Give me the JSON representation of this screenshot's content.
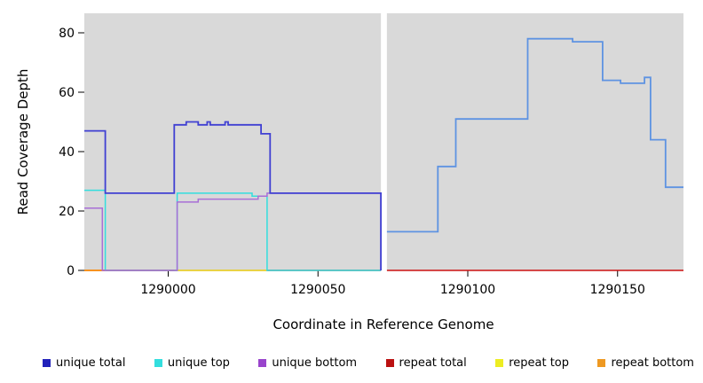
{
  "chart_data": {
    "type": "line",
    "title": "",
    "xlabel": "Coordinate in Reference Genome",
    "ylabel": "Read Coverage Depth",
    "xlim": [
      1289972,
      1290172
    ],
    "ylim": [
      0,
      80
    ],
    "x_ticks": [
      1290000,
      1290050,
      1290100,
      1290150
    ],
    "y_ticks": [
      0,
      20,
      40,
      60,
      80
    ],
    "grid": false,
    "panel_bg": "#d9d9d9",
    "gap_x": [
      1290071,
      1290073
    ],
    "legend_position": "bottom",
    "series": [
      {
        "name": "repeat total",
        "color": "#cc1111",
        "width": 1.5,
        "paths": [
          [
            [
              1289972,
              0
            ],
            [
              1290071,
              0
            ]
          ],
          [
            [
              1290073,
              0
            ],
            [
              1290172,
              0
            ]
          ]
        ]
      },
      {
        "name": "repeat bottom",
        "color": "#ff9900",
        "width": 1.6,
        "paths": [
          [
            [
              1289972,
              0
            ],
            [
              1290002,
              0
            ]
          ]
        ]
      },
      {
        "name": "repeat top",
        "color": "#eded33",
        "width": 1.5,
        "paths": [
          [
            [
              1290002,
              0
            ],
            [
              1290033,
              0
            ]
          ]
        ]
      },
      {
        "name": "unique top",
        "color": "#33dede",
        "width": 1.5,
        "paths": [
          [
            [
              1289972,
              27
            ],
            [
              1289979,
              27
            ],
            [
              1289979,
              0
            ],
            [
              1290003,
              0
            ],
            [
              1290003,
              26
            ],
            [
              1290028,
              26
            ],
            [
              1290028,
              25
            ],
            [
              1290033,
              25
            ],
            [
              1290033,
              0
            ],
            [
              1290071,
              0
            ]
          ]
        ]
      },
      {
        "name": "unique bottom",
        "color": "#a86fd6",
        "width": 1.5,
        "paths": [
          [
            [
              1289972,
              21
            ],
            [
              1289978,
              21
            ],
            [
              1289978,
              0
            ],
            [
              1290003,
              0
            ],
            [
              1290003,
              23
            ],
            [
              1290010,
              23
            ],
            [
              1290010,
              24
            ],
            [
              1290030,
              24
            ],
            [
              1290030,
              25
            ],
            [
              1290033,
              25
            ],
            [
              1290033,
              26
            ],
            [
              1290071,
              26
            ],
            [
              1290071,
              0
            ]
          ]
        ]
      },
      {
        "name": "unique total",
        "color": "#4040d2",
        "width": 1.8,
        "paths": [
          [
            [
              1289972,
              47
            ],
            [
              1289979,
              47
            ],
            [
              1289979,
              26
            ],
            [
              1290002,
              26
            ],
            [
              1290002,
              49
            ],
            [
              1290006,
              49
            ],
            [
              1290006,
              50
            ],
            [
              1290010,
              50
            ],
            [
              1290010,
              49
            ],
            [
              1290013,
              49
            ],
            [
              1290013,
              50
            ],
            [
              1290014,
              50
            ],
            [
              1290014,
              49
            ],
            [
              1290019,
              49
            ],
            [
              1290019,
              50
            ],
            [
              1290020,
              50
            ],
            [
              1290020,
              49
            ],
            [
              1290031,
              49
            ],
            [
              1290031,
              46
            ],
            [
              1290034,
              46
            ],
            [
              1290034,
              26
            ],
            [
              1290071,
              26
            ],
            [
              1290071,
              0
            ]
          ]
        ]
      },
      {
        "name": "unique total",
        "color": "#5e93e2",
        "width": 1.8,
        "paths": [
          [
            [
              1290073,
              13
            ],
            [
              1290090,
              13
            ],
            [
              1290090,
              35
            ],
            [
              1290096,
              35
            ],
            [
              1290096,
              51
            ],
            [
              1290120,
              51
            ],
            [
              1290120,
              78
            ],
            [
              1290135,
              78
            ],
            [
              1290135,
              77
            ],
            [
              1290145,
              77
            ],
            [
              1290145,
              64
            ],
            [
              1290151,
              64
            ],
            [
              1290151,
              63
            ],
            [
              1290159,
              63
            ],
            [
              1290159,
              65
            ],
            [
              1290161,
              65
            ],
            [
              1290161,
              44
            ],
            [
              1290166,
              44
            ],
            [
              1290166,
              28
            ],
            [
              1290172,
              28
            ]
          ]
        ]
      }
    ],
    "legend": [
      {
        "label": "unique total",
        "color": "#2222bb"
      },
      {
        "label": "unique top",
        "color": "#33dede"
      },
      {
        "label": "unique bottom",
        "color": "#9944cc"
      },
      {
        "label": "repeat total",
        "color": "#bb1111"
      },
      {
        "label": "repeat top",
        "color": "#eded22"
      },
      {
        "label": "repeat bottom",
        "color": "#ee9922"
      }
    ]
  }
}
